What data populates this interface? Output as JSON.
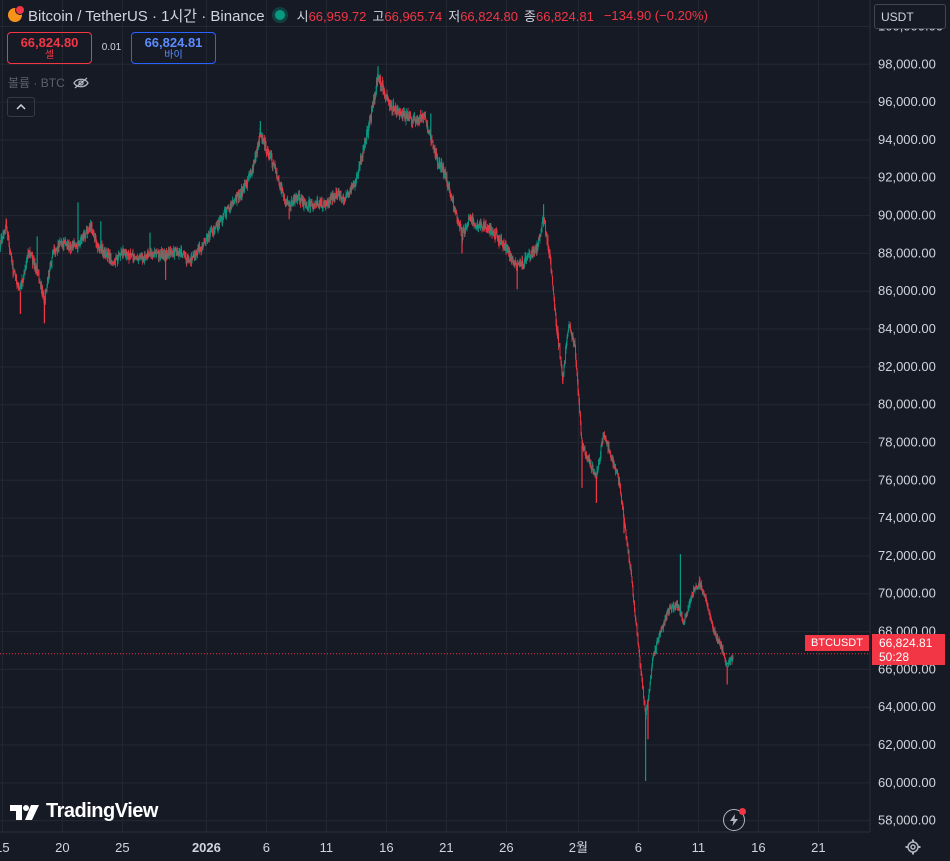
{
  "header": {
    "symbol_title": "Bitcoin / TetherUS · 1시간 · Binance",
    "open_label": "시",
    "open_value": "66,959.72",
    "high_label": "고",
    "high_value": "66,965.74",
    "low_label": "저",
    "low_value": "66,824.80",
    "close_label": "종",
    "close_value": "66,824.81",
    "change": "−134.90 (−0.20%)"
  },
  "trade": {
    "sell_price": "66,824.80",
    "sell_label": "셀",
    "spread": "0.01",
    "buy_price": "66,824.81",
    "buy_label": "바이"
  },
  "volume_label": "볼륨 · BTC",
  "currency": "USDT",
  "last_price": {
    "symbol": "BTCUSDT",
    "price": "66,824.81",
    "countdown": "50:28"
  },
  "brand": "TradingView",
  "colors": {
    "background": "#161a25",
    "up": "#089981",
    "down": "#f23645",
    "grid": "#242833",
    "buy": "#2962ff"
  },
  "icons": [
    "bitcoin-icon",
    "market-open-icon",
    "eye-off-icon",
    "chevron-up-icon",
    "tradingview-logo-icon",
    "lightning-icon",
    "gear-icon"
  ],
  "chart_data": {
    "type": "candlestick",
    "interval": "1h",
    "y_ticks": [
      "100,000.00",
      "98,000.00",
      "96,000.00",
      "94,000.00",
      "92,000.00",
      "90,000.00",
      "88,000.00",
      "86,000.00",
      "84,000.00",
      "82,000.00",
      "80,000.00",
      "78,000.00",
      "76,000.00",
      "74,000.00",
      "72,000.00",
      "70,000.00",
      "68,000.00",
      "66,000.00",
      "64,000.00",
      "62,000.00",
      "60,000.00",
      "58,000.00"
    ],
    "ylim": [
      57400,
      101400
    ],
    "x_ticks": [
      {
        "label": "15",
        "day": 15
      },
      {
        "label": "20",
        "day": 20
      },
      {
        "label": "25",
        "day": 25
      },
      {
        "label": "2026",
        "day": 32
      },
      {
        "label": "6",
        "day": 37
      },
      {
        "label": "11",
        "day": 42
      },
      {
        "label": "16",
        "day": 47
      },
      {
        "label": "21",
        "day": 52
      },
      {
        "label": "26",
        "day": 57
      },
      {
        "label": "2월",
        "day": 63
      },
      {
        "label": "6",
        "day": 68
      },
      {
        "label": "11",
        "day": 73
      },
      {
        "label": "16",
        "day": 78
      },
      {
        "label": "21",
        "day": 83
      }
    ],
    "last_price": 66824.81,
    "price_path": [
      [
        14.8,
        88500
      ],
      [
        15.3,
        89600
      ],
      [
        15.9,
        87000
      ],
      [
        16.5,
        86000
      ],
      [
        17.2,
        88200
      ],
      [
        17.9,
        87000
      ],
      [
        18.5,
        85500
      ],
      [
        19.2,
        88000
      ],
      [
        19.9,
        88600
      ],
      [
        20.7,
        88300
      ],
      [
        21.3,
        88500
      ],
      [
        22.0,
        89200
      ],
      [
        22.4,
        89500
      ],
      [
        22.9,
        88400
      ],
      [
        23.6,
        88000
      ],
      [
        24.4,
        87500
      ],
      [
        25.1,
        88100
      ],
      [
        25.8,
        87800
      ],
      [
        26.6,
        87700
      ],
      [
        27.3,
        88000
      ],
      [
        28.1,
        87900
      ],
      [
        29.0,
        88000
      ],
      [
        29.8,
        88100
      ],
      [
        30.6,
        87600
      ],
      [
        31.4,
        88200
      ],
      [
        32.1,
        88800
      ],
      [
        32.9,
        89500
      ],
      [
        33.6,
        90200
      ],
      [
        34.4,
        90800
      ],
      [
        35.2,
        91500
      ],
      [
        35.9,
        92500
      ],
      [
        36.5,
        94300
      ],
      [
        37.0,
        93500
      ],
      [
        37.6,
        92700
      ],
      [
        38.2,
        91500
      ],
      [
        38.9,
        90400
      ],
      [
        39.6,
        91000
      ],
      [
        40.4,
        90500
      ],
      [
        41.2,
        90700
      ],
      [
        42.0,
        90500
      ],
      [
        42.8,
        91200
      ],
      [
        43.6,
        90900
      ],
      [
        44.4,
        91800
      ],
      [
        45.1,
        93500
      ],
      [
        45.8,
        95500
      ],
      [
        46.3,
        97300
      ],
      [
        46.8,
        96600
      ],
      [
        47.3,
        95800
      ],
      [
        47.9,
        95500
      ],
      [
        48.7,
        95200
      ],
      [
        49.5,
        95000
      ],
      [
        50.2,
        95200
      ],
      [
        50.7,
        94000
      ],
      [
        51.3,
        92800
      ],
      [
        51.9,
        92200
      ],
      [
        52.6,
        90500
      ],
      [
        53.3,
        89000
      ],
      [
        54.0,
        89800
      ],
      [
        54.8,
        89500
      ],
      [
        55.6,
        89300
      ],
      [
        56.4,
        88700
      ],
      [
        57.1,
        88200
      ],
      [
        57.9,
        87200
      ],
      [
        58.7,
        87700
      ],
      [
        59.5,
        88200
      ],
      [
        60.1,
        89800
      ],
      [
        60.6,
        88000
      ],
      [
        61.2,
        84000
      ],
      [
        61.7,
        81500
      ],
      [
        62.2,
        84200
      ],
      [
        62.7,
        83200
      ],
      [
        63.3,
        77800
      ],
      [
        63.9,
        77000
      ],
      [
        64.5,
        76200
      ],
      [
        65.1,
        78500
      ],
      [
        65.7,
        77300
      ],
      [
        66.3,
        76200
      ],
      [
        66.8,
        74000
      ],
      [
        67.3,
        71500
      ],
      [
        67.8,
        68500
      ],
      [
        68.2,
        66000
      ],
      [
        68.6,
        63500
      ],
      [
        68.9,
        64800
      ],
      [
        69.2,
        66600
      ],
      [
        69.8,
        67900
      ],
      [
        70.5,
        69100
      ],
      [
        71.2,
        69400
      ],
      [
        71.8,
        68500
      ],
      [
        72.4,
        69900
      ],
      [
        73.1,
        70600
      ],
      [
        73.7,
        69500
      ],
      [
        74.3,
        68000
      ],
      [
        74.9,
        67200
      ],
      [
        75.4,
        66200
      ],
      [
        75.9,
        66600
      ]
    ],
    "spikes": [
      [
        16.5,
        84800,
        "down"
      ],
      [
        17.9,
        88900,
        "up"
      ],
      [
        18.5,
        84300,
        "down"
      ],
      [
        21.3,
        90700,
        "up"
      ],
      [
        23.2,
        89700,
        "up"
      ],
      [
        27.3,
        89100,
        "up"
      ],
      [
        28.6,
        86600,
        "down"
      ],
      [
        36.5,
        95000,
        "up"
      ],
      [
        38.9,
        89800,
        "down"
      ],
      [
        46.3,
        97900,
        "up"
      ],
      [
        50.7,
        95400,
        "up"
      ],
      [
        53.3,
        88000,
        "down"
      ],
      [
        57.9,
        86100,
        "down"
      ],
      [
        60.1,
        90600,
        "up"
      ],
      [
        61.7,
        81100,
        "down"
      ],
      [
        63.3,
        75600,
        "down"
      ],
      [
        64.5,
        74800,
        "down"
      ],
      [
        66.8,
        73200,
        "down"
      ],
      [
        68.6,
        60100,
        "up"
      ],
      [
        68.8,
        62300,
        "down"
      ],
      [
        71.5,
        72100,
        "up"
      ],
      [
        75.4,
        65200,
        "down"
      ]
    ]
  }
}
